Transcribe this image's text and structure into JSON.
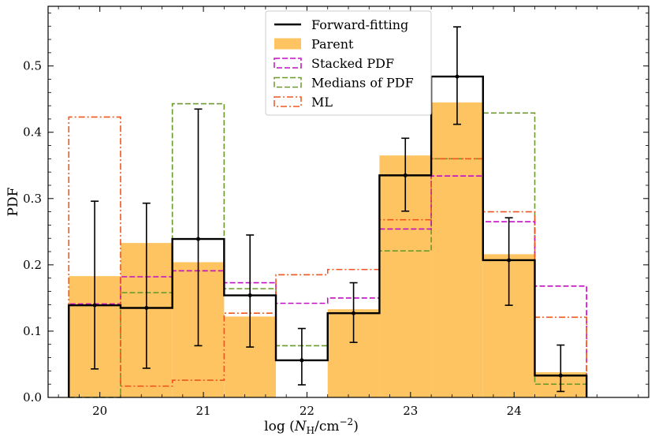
{
  "chart_data": {
    "type": "bar",
    "xlabel_prefix": "log (",
    "xlabel_N": "N",
    "xlabel_H": "H",
    "xlabel_mid": "/cm",
    "xlabel_exp": "−2",
    "xlabel_suffix": ")",
    "ylabel": "PDF",
    "xlim": [
      19.5,
      25.3
    ],
    "ylim": [
      0,
      0.59
    ],
    "xticks": [
      20,
      21,
      22,
      23,
      24
    ],
    "xtick_labels": [
      "20",
      "21",
      "22",
      "23",
      "24"
    ],
    "yticks": [
      0.0,
      0.1,
      0.2,
      0.3,
      0.4,
      0.5
    ],
    "ytick_labels": [
      "0.0",
      "0.1",
      "0.2",
      "0.3",
      "0.4",
      "0.5"
    ],
    "bin_edges": [
      19.7,
      20.2,
      20.7,
      21.2,
      21.7,
      22.2,
      22.7,
      23.2,
      23.7,
      24.2,
      24.7
    ],
    "bin_centers": [
      19.95,
      20.45,
      20.95,
      21.45,
      21.95,
      22.45,
      22.95,
      23.45,
      23.95,
      24.45
    ],
    "series": [
      {
        "name": "Parent",
        "style": "filled",
        "color": "#fdc461",
        "values": [
          0.183,
          0.233,
          0.204,
          0.122,
          0.0,
          0.133,
          0.365,
          0.445,
          0.216,
          0.038
        ]
      },
      {
        "name": "Forward-fitting",
        "style": "solid",
        "color": "#000000",
        "values": [
          0.139,
          0.135,
          0.239,
          0.154,
          0.056,
          0.127,
          0.335,
          0.484,
          0.207,
          0.033
        ],
        "err_low": [
          0.043,
          0.044,
          0.078,
          0.076,
          0.019,
          0.083,
          0.281,
          0.412,
          0.139,
          0.009
        ],
        "err_high": [
          0.296,
          0.293,
          0.435,
          0.245,
          0.104,
          0.173,
          0.391,
          0.559,
          0.271,
          0.079
        ]
      },
      {
        "name": "Stacked PDF",
        "style": "dashed",
        "color": "#c20fc2",
        "values": [
          0.141,
          0.182,
          0.191,
          0.173,
          0.142,
          0.15,
          0.254,
          0.334,
          0.265,
          0.168
        ]
      },
      {
        "name": "Medians of PDF",
        "style": "dashed",
        "color": "#6b9a2d",
        "values": [
          0.0,
          0.158,
          0.443,
          0.164,
          0.078,
          0.127,
          0.221,
          0.36,
          0.429,
          0.02
        ]
      },
      {
        "name": "ML",
        "style": "dashdot",
        "color": "#f0561e",
        "values": [
          0.423,
          0.017,
          0.026,
          0.127,
          0.185,
          0.193,
          0.268,
          0.36,
          0.28,
          0.121
        ]
      }
    ],
    "legend": {
      "position": "upper-center",
      "entries": [
        "Forward-fitting",
        "Parent",
        "Stacked PDF",
        "Medians of PDF",
        "ML"
      ]
    }
  }
}
